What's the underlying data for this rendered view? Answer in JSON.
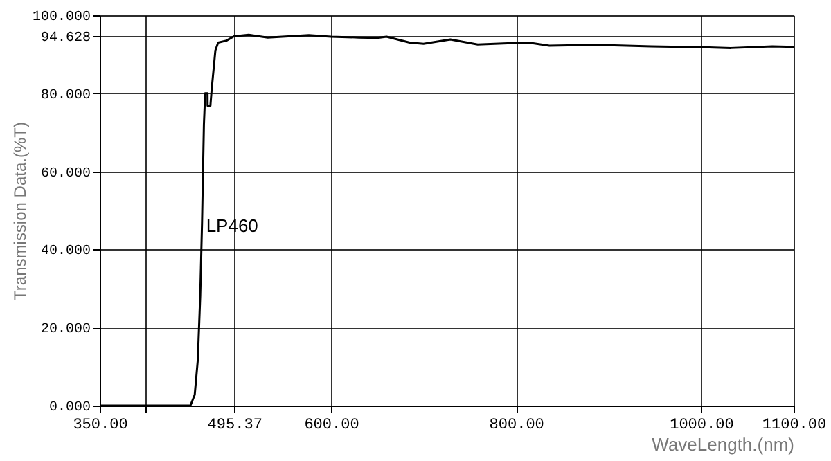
{
  "chart_data": {
    "type": "line",
    "xlabel": "WaveLength.(nm)",
    "ylabel": "Transmission Data.(%T)",
    "x": [
      350,
      400,
      448,
      452.7,
      456,
      458.6,
      460.6,
      462.6,
      464,
      466.5,
      466.6,
      469.6,
      471,
      475,
      478,
      487,
      495,
      511,
      531.6,
      576,
      600,
      630,
      650,
      660,
      685,
      700,
      729,
      758.5,
      800,
      816,
      836,
      886,
      946,
      1000,
      1032,
      1077,
      1100
    ],
    "series": [
      {
        "color": "#000000",
        "values": [
          0,
          0,
          0,
          2.8,
          11.7,
          28,
          47,
          72,
          80,
          80,
          76.8,
          76.8,
          81,
          91,
          93,
          93.5,
          94.6,
          95.0,
          94.3,
          94.9,
          94.5,
          94.3,
          94.2,
          94.5,
          93.0,
          92.7,
          93.8,
          92.5,
          92.9,
          92.9,
          92.2,
          92.4,
          92.0,
          91.8,
          91.6,
          92.0,
          91.9
        ]
      }
    ],
    "annotations": [
      {
        "text": "LP460",
        "x": 465,
        "y": 46
      }
    ],
    "xlim": [
      350,
      1100
    ],
    "xticks": [
      {
        "value": 350,
        "label": "350.00"
      },
      {
        "value": 400,
        "label": null
      },
      {
        "value": 495.37,
        "label": "495.37"
      },
      {
        "value": 600,
        "label": "600.00"
      },
      {
        "value": 800,
        "label": "800.00"
      },
      {
        "value": 1000,
        "label": "1000.00"
      },
      {
        "value": 1100,
        "label": "1100.00"
      }
    ],
    "ylim": [
      0,
      100
    ],
    "yticks": [
      {
        "value": 0,
        "label": "0.000"
      },
      {
        "value": 20,
        "label": "20.000"
      },
      {
        "value": 40,
        "label": "40.000"
      },
      {
        "value": 60,
        "label": "60.000"
      },
      {
        "value": 80,
        "label": "80.000"
      },
      {
        "value": 94.628,
        "label": "94.628"
      },
      {
        "value": 100,
        "label": "100.000"
      }
    ],
    "grid": true,
    "marker": "none",
    "line_style": "solid"
  }
}
